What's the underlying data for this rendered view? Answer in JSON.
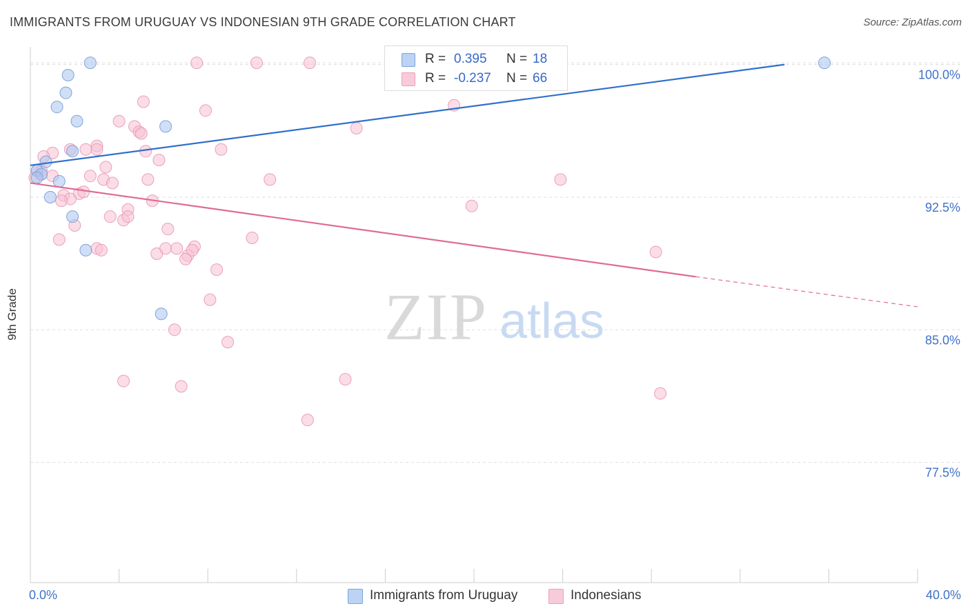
{
  "header": {
    "title": "IMMIGRANTS FROM URUGUAY VS INDONESIAN 9TH GRADE CORRELATION CHART",
    "source": "Source: ZipAtlas.com"
  },
  "watermark": {
    "zip": "ZIP",
    "atlas": "atlas"
  },
  "stats_box": {
    "rows": [
      {
        "r_label": "R =",
        "r_value": "0.395",
        "n_label": "N =",
        "n_value": "18"
      },
      {
        "r_label": "R =",
        "r_value": "-0.237",
        "n_label": "N =",
        "n_value": "66"
      }
    ]
  },
  "legend": {
    "items": [
      {
        "label": "Immigrants from Uruguay"
      },
      {
        "label": "Indonesians"
      }
    ]
  },
  "colors": {
    "blue_fill": "#a9c5ef",
    "blue_stroke": "#7ea3dc",
    "blue_line": "#2f6fcc",
    "pink_fill": "#f6c1d3",
    "pink_stroke": "#eb9fb9",
    "pink_line": "#e06a96",
    "tick_label": "#3f71c8",
    "grid": "#dddddd"
  },
  "chart_data": {
    "type": "scatter",
    "title": "IMMIGRANTS FROM URUGUAY VS INDONESIAN 9TH GRADE CORRELATION CHART",
    "xlabel": "",
    "ylabel": "9th Grade",
    "xlim": [
      0,
      40
    ],
    "ylim": [
      70.7,
      101.0
    ],
    "x_tick_labels": [
      "0.0%",
      "40.0%"
    ],
    "y_ticks": [
      77.5,
      85.0,
      92.5,
      100.0
    ],
    "y_tick_labels": [
      "77.5%",
      "85.0%",
      "92.5%",
      "100.0%"
    ],
    "grid": true,
    "legend_position": "bottom-center",
    "series": [
      {
        "name": "Immigrants from Uruguay",
        "color": "#a9c5ef",
        "r": 0.395,
        "n": 18,
        "points": [
          [
            1.7,
            99.4
          ],
          [
            2.7,
            100.1
          ],
          [
            1.6,
            98.4
          ],
          [
            1.2,
            97.6
          ],
          [
            2.1,
            96.8
          ],
          [
            6.1,
            96.5
          ],
          [
            1.9,
            95.1
          ],
          [
            0.7,
            94.5
          ],
          [
            0.3,
            94.0
          ],
          [
            0.5,
            93.8
          ],
          [
            0.3,
            93.6
          ],
          [
            1.3,
            93.4
          ],
          [
            0.9,
            92.5
          ],
          [
            1.9,
            91.4
          ],
          [
            2.5,
            89.5
          ],
          [
            5.9,
            85.9
          ],
          [
            23.9,
            100.1
          ],
          [
            35.8,
            100.1
          ]
        ],
        "trend": {
          "x": [
            0.0,
            34.0
          ],
          "y": [
            94.3,
            100.0
          ]
        }
      },
      {
        "name": "Indonesians",
        "color": "#f6c1d3",
        "r": -0.237,
        "n": 66,
        "points": [
          [
            7.5,
            100.1
          ],
          [
            10.2,
            100.1
          ],
          [
            12.6,
            100.1
          ],
          [
            5.1,
            97.9
          ],
          [
            7.9,
            97.4
          ],
          [
            19.1,
            97.7
          ],
          [
            4.0,
            96.8
          ],
          [
            4.7,
            96.5
          ],
          [
            4.9,
            96.2
          ],
          [
            5.0,
            96.1
          ],
          [
            14.7,
            96.4
          ],
          [
            1.8,
            95.2
          ],
          [
            3.0,
            95.4
          ],
          [
            2.5,
            95.2
          ],
          [
            3.0,
            95.2
          ],
          [
            5.2,
            95.1
          ],
          [
            8.6,
            95.2
          ],
          [
            1.0,
            95.0
          ],
          [
            0.6,
            94.8
          ],
          [
            5.8,
            94.6
          ],
          [
            0.5,
            94.0
          ],
          [
            0.3,
            94.0
          ],
          [
            0.5,
            93.8
          ],
          [
            0.2,
            93.6
          ],
          [
            1.0,
            93.7
          ],
          [
            2.7,
            93.7
          ],
          [
            3.4,
            94.2
          ],
          [
            3.3,
            93.5
          ],
          [
            3.7,
            93.3
          ],
          [
            5.3,
            93.5
          ],
          [
            10.8,
            93.5
          ],
          [
            23.9,
            93.5
          ],
          [
            1.5,
            92.6
          ],
          [
            2.2,
            92.7
          ],
          [
            2.4,
            92.8
          ],
          [
            1.8,
            92.4
          ],
          [
            1.4,
            92.3
          ],
          [
            5.5,
            92.3
          ],
          [
            4.4,
            91.8
          ],
          [
            3.6,
            91.4
          ],
          [
            4.2,
            91.2
          ],
          [
            4.4,
            91.4
          ],
          [
            2.0,
            90.9
          ],
          [
            6.2,
            90.7
          ],
          [
            19.9,
            92.0
          ],
          [
            1.3,
            90.1
          ],
          [
            10.0,
            90.2
          ],
          [
            3.0,
            89.6
          ],
          [
            3.2,
            89.5
          ],
          [
            5.7,
            89.3
          ],
          [
            6.1,
            89.6
          ],
          [
            6.6,
            89.6
          ],
          [
            7.1,
            89.2
          ],
          [
            7.4,
            89.7
          ],
          [
            7.3,
            89.5
          ],
          [
            28.2,
            89.4
          ],
          [
            8.4,
            88.4
          ],
          [
            8.1,
            86.7
          ],
          [
            6.5,
            85.0
          ],
          [
            8.9,
            84.3
          ],
          [
            4.2,
            82.1
          ],
          [
            6.8,
            81.8
          ],
          [
            14.2,
            82.2
          ],
          [
            12.5,
            79.9
          ],
          [
            28.4,
            81.4
          ],
          [
            7.0,
            89.0
          ]
        ],
        "trend": {
          "x": [
            0.0,
            30.0
          ],
          "y": [
            93.3,
            88.0
          ]
        },
        "trend_dashed": {
          "x": [
            30.0,
            40.0
          ],
          "y": [
            88.0,
            86.3
          ]
        }
      }
    ]
  }
}
